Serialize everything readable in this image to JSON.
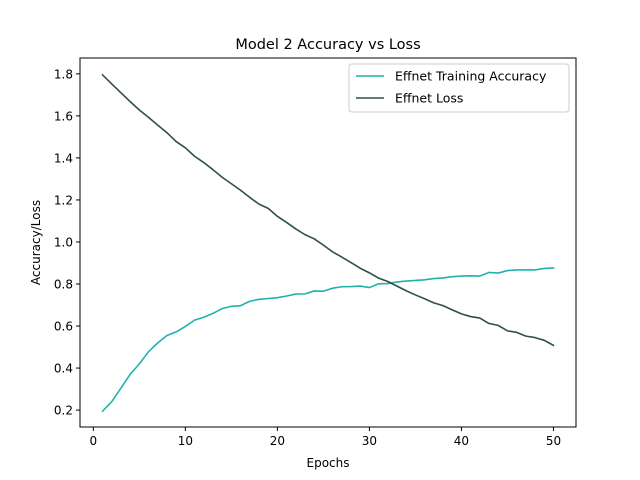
{
  "chart_data": {
    "type": "line",
    "title": "Model 2 Accuracy vs Loss",
    "xlabel": "Epochs",
    "ylabel": "Accuracy/Loss",
    "xlim": [
      -1.45,
      52.45
    ],
    "ylim": [
      0.1195,
      1.8755
    ],
    "xticks": [
      0,
      10,
      20,
      30,
      40,
      50
    ],
    "yticks": [
      0.2,
      0.4,
      0.6,
      0.8,
      1.0,
      1.2,
      1.4,
      1.6,
      1.8
    ],
    "ytick_labels": [
      "0.2",
      "0.4",
      "0.6",
      "0.8",
      "1.0",
      "1.2",
      "1.4",
      "1.6",
      "1.8"
    ],
    "xtick_labels": [
      "0",
      "10",
      "20",
      "30",
      "40",
      "50"
    ],
    "legend_position": "top-right",
    "grid": false,
    "x": [
      1,
      2,
      3,
      4,
      5,
      6,
      7,
      8,
      9,
      10,
      11,
      12,
      13,
      14,
      15,
      16,
      17,
      18,
      19,
      20,
      21,
      22,
      23,
      24,
      25,
      26,
      27,
      28,
      29,
      30,
      31,
      32,
      33,
      34,
      35,
      36,
      37,
      38,
      39,
      40,
      41,
      42,
      43,
      44,
      45,
      46,
      47,
      48,
      49,
      50
    ],
    "series": [
      {
        "name": "Effnet Training Accuracy",
        "color": "#20b2aa",
        "values": [
          0.195,
          0.24,
          0.305,
          0.37,
          0.42,
          0.478,
          0.52,
          0.555,
          0.572,
          0.598,
          0.628,
          0.642,
          0.66,
          0.683,
          0.694,
          0.697,
          0.718,
          0.727,
          0.731,
          0.735,
          0.743,
          0.752,
          0.753,
          0.767,
          0.766,
          0.78,
          0.787,
          0.788,
          0.79,
          0.783,
          0.801,
          0.802,
          0.81,
          0.814,
          0.817,
          0.82,
          0.826,
          0.829,
          0.835,
          0.838,
          0.839,
          0.838,
          0.855,
          0.852,
          0.864,
          0.867,
          0.867,
          0.867,
          0.874,
          0.877
        ]
      },
      {
        "name": "Effnet Loss",
        "color": "#2f4f4f",
        "values": [
          1.795,
          1.752,
          1.71,
          1.668,
          1.628,
          1.593,
          1.556,
          1.52,
          1.478,
          1.448,
          1.408,
          1.378,
          1.344,
          1.308,
          1.277,
          1.246,
          1.212,
          1.18,
          1.16,
          1.122,
          1.093,
          1.062,
          1.035,
          1.015,
          0.985,
          0.953,
          0.928,
          0.902,
          0.875,
          0.853,
          0.828,
          0.812,
          0.79,
          0.768,
          0.748,
          0.73,
          0.71,
          0.697,
          0.677,
          0.658,
          0.645,
          0.638,
          0.612,
          0.603,
          0.577,
          0.57,
          0.552,
          0.545,
          0.532,
          0.508
        ]
      }
    ]
  }
}
